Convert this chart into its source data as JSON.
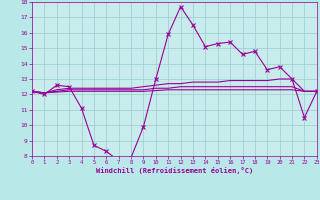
{
  "xlabel": "Windchill (Refroidissement éolien,°C)",
  "background_color": "#b8e8e8",
  "plot_bg_color": "#c8ecec",
  "grid_color": "#99cccc",
  "line_color": "#990099",
  "ylim": [
    8,
    18
  ],
  "xlim": [
    0,
    23
  ],
  "yticks": [
    8,
    9,
    10,
    11,
    12,
    13,
    14,
    15,
    16,
    17,
    18
  ],
  "xticks": [
    0,
    1,
    2,
    3,
    4,
    5,
    6,
    7,
    8,
    9,
    10,
    11,
    12,
    13,
    14,
    15,
    16,
    17,
    18,
    19,
    20,
    21,
    22,
    23
  ],
  "series1_x": [
    0,
    1,
    2,
    3,
    4,
    5,
    6,
    7,
    8,
    9,
    10,
    11,
    12,
    13,
    14,
    15,
    16,
    17,
    18,
    19,
    20,
    21,
    22,
    23
  ],
  "series1_y": [
    12.2,
    12.0,
    12.6,
    12.5,
    11.1,
    8.7,
    8.3,
    7.7,
    7.9,
    9.9,
    13.0,
    15.9,
    17.7,
    16.5,
    15.1,
    15.3,
    15.4,
    14.6,
    14.8,
    13.6,
    13.8,
    13.0,
    10.5,
    12.2
  ],
  "series2_x": [
    0,
    1,
    2,
    3,
    4,
    5,
    6,
    7,
    8,
    9,
    10,
    11,
    12,
    13,
    14,
    15,
    16,
    17,
    18,
    19,
    20,
    21,
    22,
    23
  ],
  "series2_y": [
    12.2,
    12.1,
    12.3,
    12.4,
    12.4,
    12.4,
    12.4,
    12.4,
    12.4,
    12.5,
    12.6,
    12.7,
    12.7,
    12.8,
    12.8,
    12.8,
    12.9,
    12.9,
    12.9,
    12.9,
    13.0,
    13.0,
    12.2,
    12.2
  ],
  "series3_x": [
    0,
    1,
    2,
    3,
    4,
    5,
    6,
    7,
    8,
    9,
    10,
    11,
    12,
    13,
    14,
    15,
    16,
    17,
    18,
    19,
    20,
    21,
    22,
    23
  ],
  "series3_y": [
    12.2,
    12.1,
    12.2,
    12.3,
    12.3,
    12.3,
    12.3,
    12.3,
    12.3,
    12.3,
    12.4,
    12.4,
    12.5,
    12.5,
    12.5,
    12.5,
    12.5,
    12.5,
    12.5,
    12.5,
    12.5,
    12.5,
    12.2,
    12.2
  ],
  "series4_x": [
    0,
    1,
    2,
    3,
    4,
    5,
    6,
    7,
    8,
    9,
    10,
    11,
    12,
    13,
    14,
    15,
    16,
    17,
    18,
    19,
    20,
    21,
    22,
    23
  ],
  "series4_y": [
    12.2,
    12.1,
    12.15,
    12.2,
    12.2,
    12.2,
    12.2,
    12.2,
    12.2,
    12.2,
    12.25,
    12.3,
    12.3,
    12.3,
    12.3,
    12.3,
    12.3,
    12.3,
    12.3,
    12.3,
    12.3,
    12.3,
    12.2,
    12.2
  ]
}
